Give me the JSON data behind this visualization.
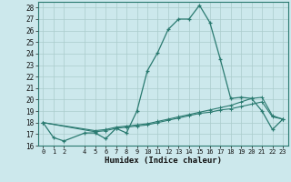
{
  "xlabel": "Humidex (Indice chaleur)",
  "bg_color": "#cce8ec",
  "line_color": "#2a7a70",
  "grid_color": "#aacccc",
  "spine_color": "#2a7a70",
  "ylim": [
    16,
    28.5
  ],
  "xlim": [
    -0.5,
    23.5
  ],
  "yticks": [
    16,
    17,
    18,
    19,
    20,
    21,
    22,
    23,
    24,
    25,
    26,
    27,
    28
  ],
  "xticks": [
    0,
    1,
    2,
    4,
    5,
    6,
    7,
    8,
    9,
    10,
    11,
    12,
    13,
    14,
    15,
    16,
    17,
    18,
    19,
    20,
    21,
    22,
    23
  ],
  "line1_x": [
    0,
    1,
    2,
    4,
    5,
    6,
    7,
    8,
    9,
    10,
    11,
    12,
    13,
    14,
    15,
    16,
    17,
    18,
    19,
    20,
    21,
    22,
    23
  ],
  "line1_y": [
    18.0,
    16.7,
    16.4,
    17.1,
    17.1,
    16.6,
    17.5,
    17.1,
    19.0,
    22.5,
    24.1,
    26.1,
    27.0,
    27.0,
    28.2,
    26.7,
    23.5,
    20.1,
    20.2,
    20.1,
    19.0,
    17.4,
    18.3
  ],
  "line2_x": [
    0,
    5,
    6,
    7,
    8,
    9,
    10,
    11,
    12,
    13,
    14,
    15,
    16,
    17,
    18,
    19,
    20,
    21,
    22,
    23
  ],
  "line2_y": [
    18.0,
    17.2,
    17.3,
    17.5,
    17.6,
    17.7,
    17.8,
    18.0,
    18.2,
    18.4,
    18.6,
    18.8,
    18.9,
    19.1,
    19.2,
    19.4,
    19.6,
    19.8,
    18.5,
    18.3
  ],
  "line3_x": [
    0,
    5,
    6,
    7,
    8,
    9,
    10,
    11,
    12,
    13,
    14,
    15,
    16,
    17,
    18,
    19,
    20,
    21,
    22,
    23
  ],
  "line3_y": [
    18.0,
    17.3,
    17.4,
    17.6,
    17.7,
    17.8,
    17.9,
    18.1,
    18.3,
    18.5,
    18.7,
    18.9,
    19.1,
    19.3,
    19.5,
    19.8,
    20.1,
    20.2,
    18.6,
    18.3
  ]
}
